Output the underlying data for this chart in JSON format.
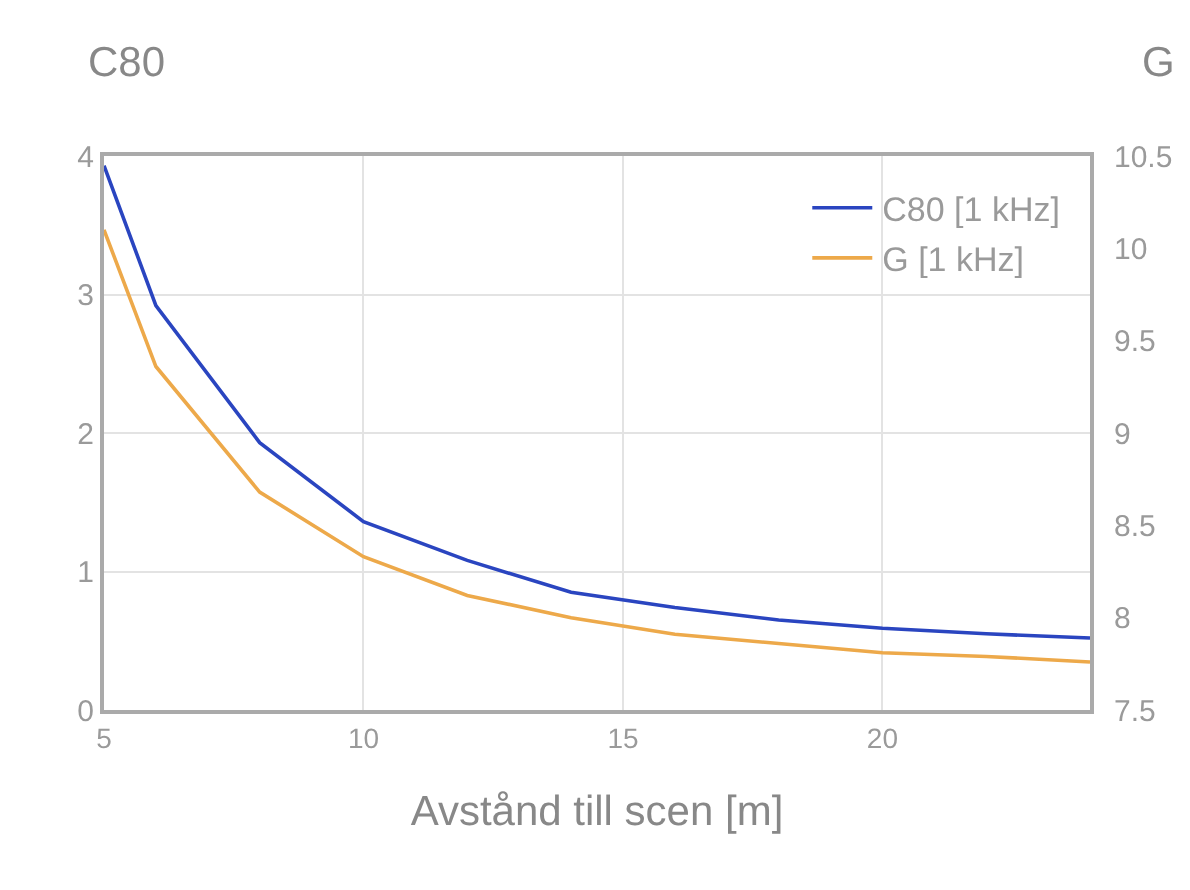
{
  "chart_data": {
    "type": "line",
    "xlabel": "Avstånd till scen [m]",
    "ylabel": "C80",
    "y2label": "G",
    "x": [
      5,
      6,
      8,
      10,
      12,
      14,
      16,
      18,
      20,
      22,
      24
    ],
    "series": [
      {
        "name": "C80 [1 kHz]",
        "color": "#2a45c0",
        "values": [
          3.93,
          2.92,
          1.93,
          1.36,
          1.08,
          0.85,
          0.74,
          0.65,
          0.59,
          0.55,
          0.52
        ]
      },
      {
        "name": "G [1 kHz]",
        "color": "#eda94a",
        "axis": "y2",
        "values": [
          10.1,
          9.36,
          8.68,
          8.33,
          8.12,
          8.0,
          7.91,
          7.86,
          7.81,
          7.79,
          7.76
        ]
      }
    ],
    "xlim": [
      5,
      24
    ],
    "xticks": [
      5,
      10,
      15,
      20
    ],
    "ylim": [
      0,
      4
    ],
    "yticks": [
      0,
      1,
      2,
      3,
      4
    ],
    "y2lim": [
      7.5,
      10.5
    ],
    "y2ticks": [
      7.5,
      8,
      8.5,
      9,
      9.5,
      10,
      10.5
    ],
    "grid": true,
    "legend": "top right",
    "marker": "none",
    "line_style": "solid"
  }
}
